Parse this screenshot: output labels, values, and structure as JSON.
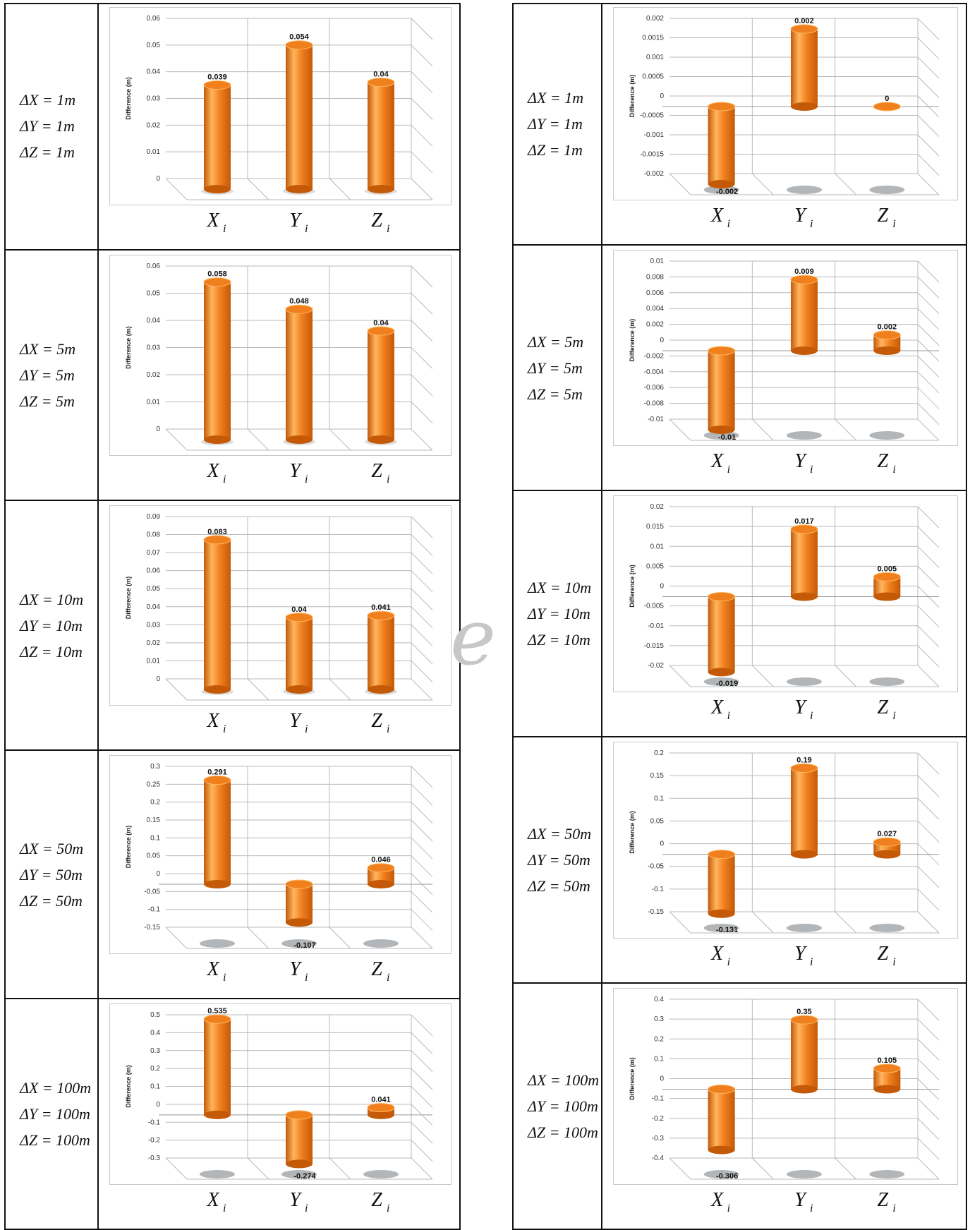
{
  "y_axis_label": "Difference (m)",
  "categories": [
    "X",
    "Y",
    "Z"
  ],
  "category_subscript": "i",
  "colors": {
    "bar": "#f07f1d",
    "bar_light": "#ffb55e",
    "bar_dark": "#c45a08",
    "shadow": "#b3b6b8",
    "grid": "#b9b9b9"
  },
  "watermark": "e",
  "panels": [
    {
      "condition": [
        "ΔX = 1m",
        "ΔY = 1m",
        "ΔZ = 1m"
      ]
    },
    {
      "condition": [
        "ΔX = 5m",
        "ΔY = 5m",
        "ΔZ = 5m"
      ]
    },
    {
      "condition": [
        "ΔX = 10m",
        "ΔY = 10m",
        "ΔZ = 10m"
      ]
    },
    {
      "condition": [
        "ΔX = 50m",
        "ΔY = 50m",
        "ΔZ = 50m"
      ]
    },
    {
      "condition": [
        "ΔX = 100m",
        "ΔY = 100m",
        "ΔZ = 100m"
      ]
    },
    {
      "condition": [
        "ΔX = 1m",
        "ΔY = 1m",
        "ΔZ = 1m"
      ]
    },
    {
      "condition": [
        "ΔX = 5m",
        "ΔY = 5m",
        "ΔZ = 5m"
      ]
    },
    {
      "condition": [
        "ΔX = 10m",
        "ΔY = 10m",
        "ΔZ = 10m"
      ]
    },
    {
      "condition": [
        "ΔX = 50m",
        "ΔY = 50m",
        "ΔZ = 50m"
      ]
    },
    {
      "condition": [
        "ΔX = 100m",
        "ΔY = 100m",
        "ΔZ = 100m"
      ]
    }
  ],
  "chart_data": [
    {
      "type": "bar",
      "categories": [
        "X",
        "Y",
        "Z"
      ],
      "values": [
        0.039,
        0.054,
        0.04
      ],
      "value_labels": [
        "0.039",
        "0.054",
        "0.04"
      ],
      "ylabel": "Difference (m)",
      "ylim": [
        0,
        0.06
      ],
      "ticks": [
        "0",
        "0.01",
        "0.02",
        "0.03",
        "0.04",
        "0.05",
        "0.06"
      ]
    },
    {
      "type": "bar",
      "categories": [
        "X",
        "Y",
        "Z"
      ],
      "values": [
        0.058,
        0.048,
        0.04
      ],
      "value_labels": [
        "0.058",
        "0.048",
        "0.04"
      ],
      "ylabel": "Difference (m)",
      "ylim": [
        0,
        0.06
      ],
      "ticks": [
        "0",
        "0.01",
        "0.02",
        "0.03",
        "0.04",
        "0.05",
        "0.06"
      ]
    },
    {
      "type": "bar",
      "categories": [
        "X",
        "Y",
        "Z"
      ],
      "values": [
        0.083,
        0.04,
        0.041
      ],
      "value_labels": [
        "0.083",
        "0.04",
        "0.041"
      ],
      "ylabel": "Difference (m)",
      "ylim": [
        0,
        0.09
      ],
      "ticks": [
        "0",
        "0.01",
        "0.02",
        "0.03",
        "0.04",
        "0.05",
        "0.06",
        "0.07",
        "0.08",
        "0.09"
      ]
    },
    {
      "type": "bar",
      "categories": [
        "X",
        "Y",
        "Z"
      ],
      "values": [
        0.291,
        -0.107,
        0.046
      ],
      "value_labels": [
        "0.291",
        "-0.107",
        "0.046"
      ],
      "ylabel": "Difference (m)",
      "ylim": [
        -0.15,
        0.3
      ],
      "ticks": [
        "-0.15",
        "-0.1",
        "-0.05",
        "0",
        "0.05",
        "0.1",
        "0.15",
        "0.2",
        "0.25",
        "0.3"
      ]
    },
    {
      "type": "bar",
      "categories": [
        "X",
        "Y",
        "Z"
      ],
      "values": [
        0.535,
        -0.274,
        0.041
      ],
      "value_labels": [
        "0.535",
        "-0.274",
        "0.041"
      ],
      "ylabel": "Difference (m)",
      "ylim": [
        -0.3,
        0.5
      ],
      "ticks": [
        "-0.3",
        "-0.2",
        "-0.1",
        "0",
        "0.1",
        "0.2",
        "0.3",
        "0.4",
        "0.5"
      ]
    },
    {
      "type": "bar",
      "categories": [
        "X",
        "Y",
        "Z"
      ],
      "values": [
        -0.002,
        0.002,
        0
      ],
      "value_labels": [
        "-0.002",
        "0.002",
        "0"
      ],
      "ylabel": "Difference (m)",
      "ylim": [
        -0.002,
        0.002
      ],
      "ticks": [
        "-0.002",
        "-0.0015",
        "-0.001",
        "-0.0005",
        "0",
        "0.0005",
        "0.001",
        "0.0015",
        "0.002"
      ]
    },
    {
      "type": "bar",
      "categories": [
        "X",
        "Y",
        "Z"
      ],
      "values": [
        -0.01,
        0.009,
        0.002
      ],
      "value_labels": [
        "-0.01",
        "0.009",
        "0.002"
      ],
      "ylabel": "Difference (m)",
      "ylim": [
        -0.01,
        0.01
      ],
      "ticks": [
        "-0.01",
        "-0.008",
        "-0.006",
        "-0.004",
        "-0.002",
        "0",
        "0.002",
        "0.004",
        "0.006",
        "0.008",
        "0.01"
      ]
    },
    {
      "type": "bar",
      "categories": [
        "X",
        "Y",
        "Z"
      ],
      "values": [
        -0.019,
        0.017,
        0.005
      ],
      "value_labels": [
        "-0.019",
        "0.017",
        "0.005"
      ],
      "ylabel": "Difference (m)",
      "ylim": [
        -0.02,
        0.02
      ],
      "ticks": [
        "-0.02",
        "-0.015",
        "-0.01",
        "-0.005",
        "0",
        "0.005",
        "0.01",
        "0.015",
        "0.02"
      ]
    },
    {
      "type": "bar",
      "categories": [
        "X",
        "Y",
        "Z"
      ],
      "values": [
        -0.131,
        0.19,
        0.027
      ],
      "value_labels": [
        "-0.131",
        "0.19",
        "0.027"
      ],
      "ylabel": "Difference (m)",
      "ylim": [
        -0.15,
        0.2
      ],
      "ticks": [
        "-0.15",
        "-0.1",
        "-0.05",
        "0",
        "0.05",
        "0.1",
        "0.15",
        "0.2"
      ]
    },
    {
      "type": "bar",
      "categories": [
        "X",
        "Y",
        "Z"
      ],
      "values": [
        -0.306,
        0.35,
        0.105
      ],
      "value_labels": [
        "-0.306",
        "0.35",
        "0.105"
      ],
      "ylabel": "Difference (m)",
      "ylim": [
        -0.4,
        0.4
      ],
      "ticks": [
        "-0.4",
        "-0.3",
        "-0.2",
        "-0.1",
        "0",
        "0.1",
        "0.2",
        "0.3",
        "0.4"
      ]
    }
  ]
}
